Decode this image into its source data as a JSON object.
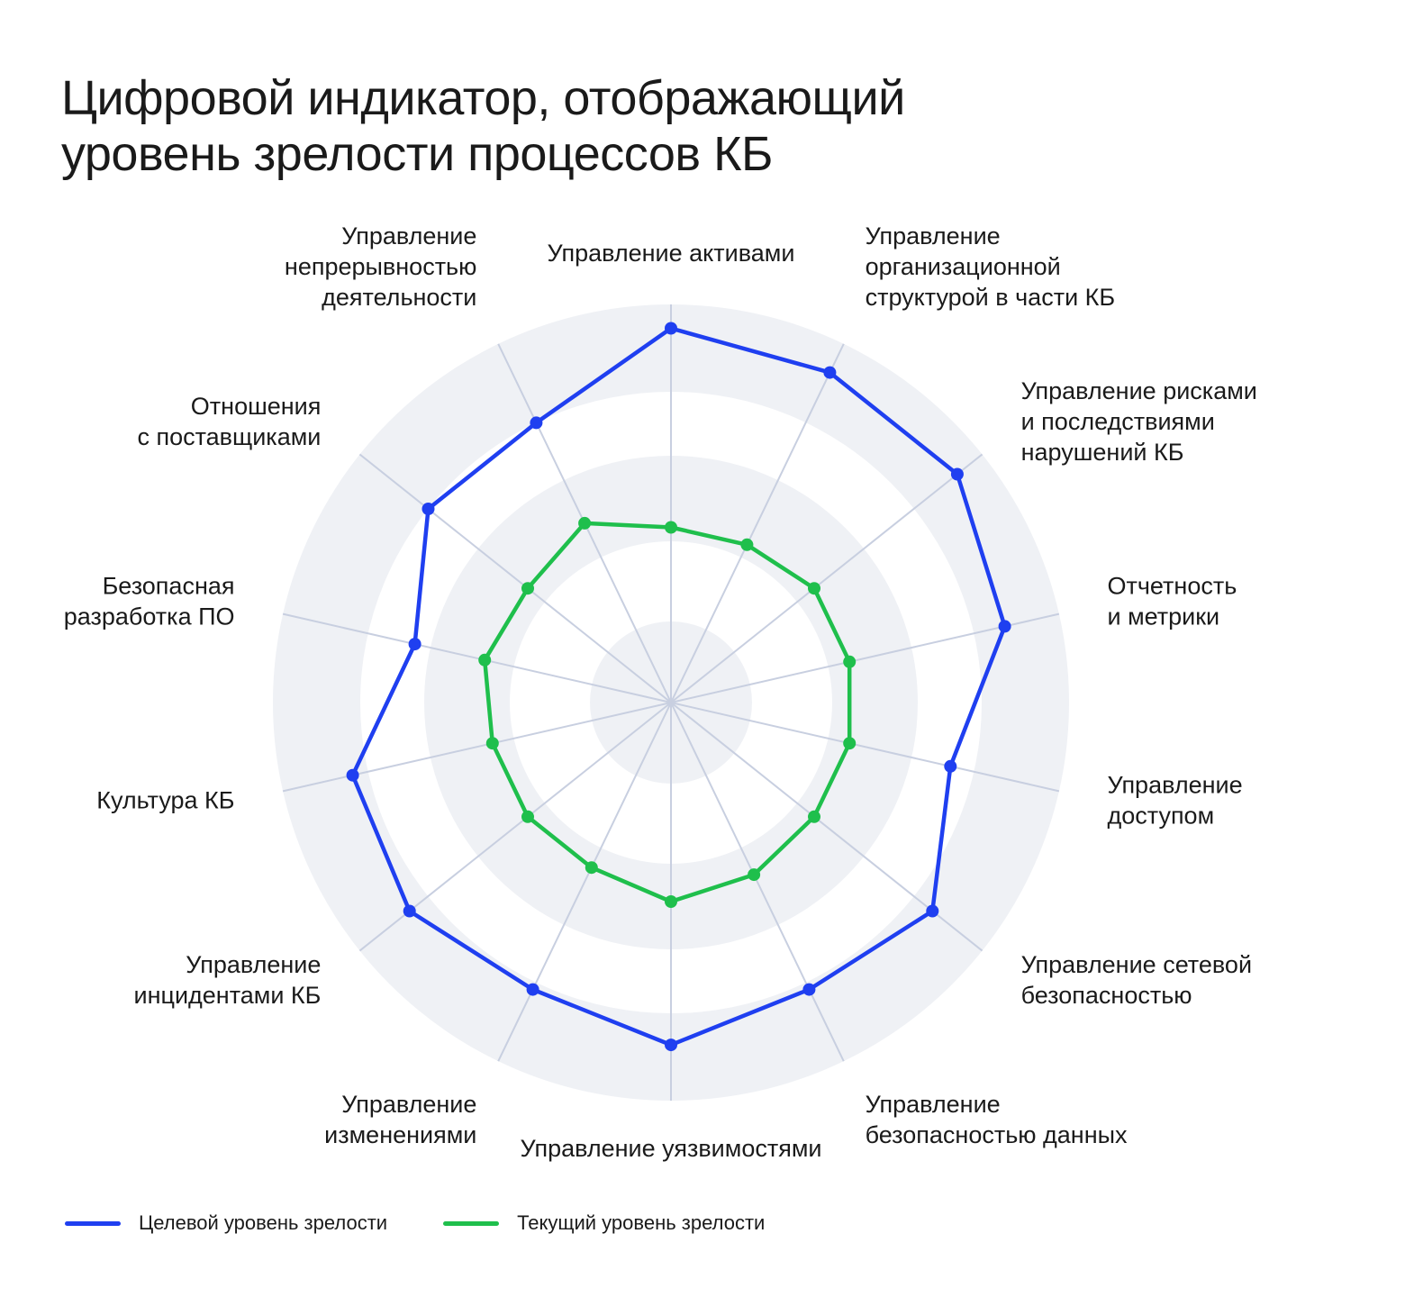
{
  "title": {
    "line1": "Цифровой индикатор, отображающий",
    "line2": "уровень зрелости процессов КБ"
  },
  "chart_data": {
    "type": "radar",
    "axes": [
      [
        "Управление активами"
      ],
      [
        "Управление",
        "организационной",
        "структурой в части КБ"
      ],
      [
        "Управление рисками",
        "и последствиями",
        "нарушений КБ"
      ],
      [
        "Отчетность",
        "и метрики"
      ],
      [
        "Управление",
        "доступом"
      ],
      [
        "Управление сетевой",
        "безопасностью"
      ],
      [
        "Управление",
        "безопасностью данных"
      ],
      [
        "Управление уязвимостями"
      ],
      [
        "Управление",
        "изменениями"
      ],
      [
        "Управление",
        "инцидентами КБ"
      ],
      [
        "Культура КБ"
      ],
      [
        "Безопасная",
        "разработка ПО"
      ],
      [
        "Отношения",
        "с поставщиками"
      ],
      [
        "Управление",
        "непрерывностью",
        "деятельности"
      ]
    ],
    "rmax": 5,
    "series": [
      {
        "name": "Целевой уровень зрелости",
        "color": "#1f3ff0",
        "values": [
          4.7,
          4.6,
          4.6,
          4.3,
          3.6,
          4.2,
          4.0,
          4.3,
          4.0,
          4.2,
          4.1,
          3.3,
          3.9,
          3.9
        ]
      },
      {
        "name": "Текущий уровень зрелости",
        "color": "#1fbf4c",
        "values": [
          2.2,
          2.2,
          2.3,
          2.3,
          2.3,
          2.3,
          2.4,
          2.5,
          2.3,
          2.3,
          2.3,
          2.4,
          2.3,
          2.5
        ]
      }
    ]
  }
}
